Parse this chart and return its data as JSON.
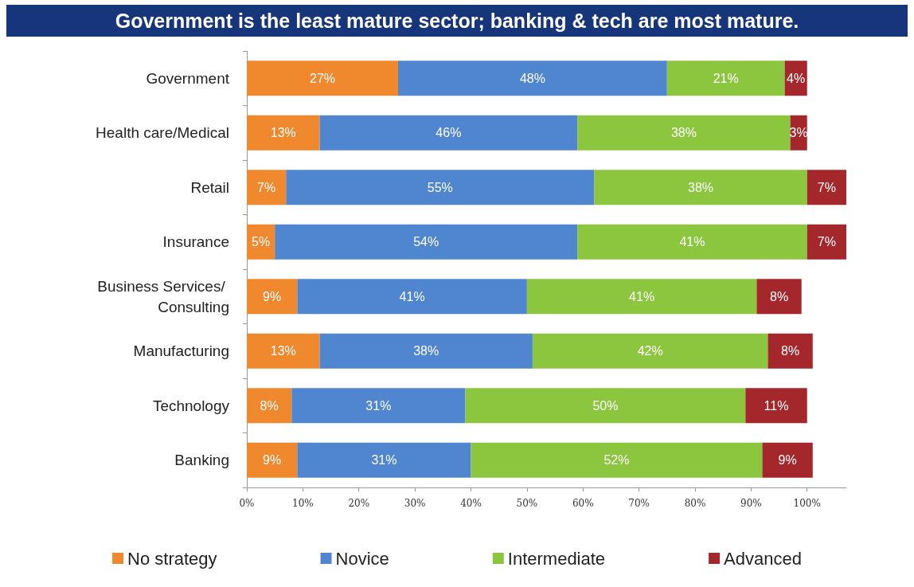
{
  "chart_data": {
    "type": "bar",
    "orientation": "horizontal",
    "stacked": true,
    "title": "Government is the least mature sector; banking & tech are most mature.",
    "categories": [
      "Government",
      "Health care/Medical",
      "Retail",
      "Insurance",
      "Business Services/ Consulting",
      "Manufacturing",
      "Technology",
      "Banking"
    ],
    "series": [
      {
        "name": "No strategy",
        "color": "#f0882e",
        "values": [
          27,
          13,
          7,
          5,
          9,
          13,
          8,
          9
        ],
        "value_labels": [
          "27%",
          "13%",
          "7%",
          "5%",
          "9%",
          "13%",
          "8%",
          "9%"
        ]
      },
      {
        "name": "Novice",
        "color": "#4f86cf",
        "values": [
          48,
          46,
          55,
          54,
          41,
          38,
          31,
          31
        ],
        "value_labels": [
          "48%",
          "46%",
          "55%",
          "54%",
          "41%",
          "38%",
          "31%",
          "31%"
        ]
      },
      {
        "name": "Intermediate",
        "color": "#8cc63f",
        "values": [
          21,
          38,
          38,
          41,
          41,
          42,
          50,
          52
        ],
        "value_labels": [
          "21%",
          "38%",
          "38%",
          "41%",
          "41%",
          "42%",
          "50%",
          "52%"
        ]
      },
      {
        "name": "Advanced",
        "color": "#a3272b",
        "values": [
          4,
          3,
          7,
          7,
          8,
          8,
          11,
          9
        ],
        "value_labels": [
          "4%",
          "3%",
          "7%",
          "7%",
          "8%",
          "8%",
          "11%",
          "9%"
        ]
      }
    ],
    "xlim": [
      0,
      107
    ],
    "xticks": [
      {
        "value": 0,
        "label": "0%"
      },
      {
        "value": 10,
        "label": "10%"
      },
      {
        "value": 20,
        "label": "20%"
      },
      {
        "value": 30,
        "label": "30%"
      },
      {
        "value": 40,
        "label": "40%"
      },
      {
        "value": 50,
        "label": "50%"
      },
      {
        "value": 60,
        "label": "60%"
      },
      {
        "value": 70,
        "label": "70%"
      },
      {
        "value": 80,
        "label": "80%"
      },
      {
        "value": 90,
        "label": "90%"
      },
      {
        "value": 100,
        "label": "100%"
      }
    ],
    "grid": false,
    "legend": "bottom"
  }
}
